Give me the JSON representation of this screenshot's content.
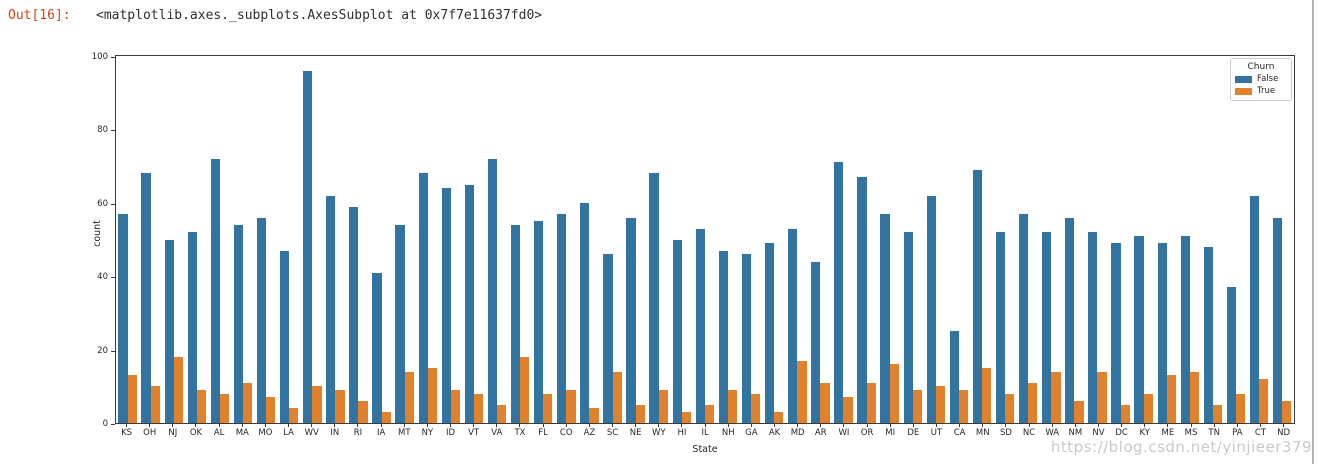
{
  "notebook": {
    "out_prompt": "Out[16]:",
    "out_value": "<matplotlib.axes._subplots.AxesSubplot at 0x7f7e11637fd0>",
    "prompt_color": "#d84315"
  },
  "watermark": {
    "text": "https://blog.csdn.net/yinjieer379",
    "color": "#c9c9c9"
  },
  "chart_data": {
    "type": "bar",
    "title": "",
    "xlabel": "State",
    "ylabel": "count",
    "ylim": [
      0,
      100
    ],
    "yticks": [
      0,
      20,
      40,
      60,
      80,
      100
    ],
    "grid": false,
    "legend": {
      "title": "Churn",
      "position": "upper right",
      "entries": [
        {
          "label": "False",
          "color": "#3274a1"
        },
        {
          "label": "True",
          "color": "#e1812c"
        }
      ]
    },
    "categories": [
      "KS",
      "OH",
      "NJ",
      "OK",
      "AL",
      "MA",
      "MO",
      "LA",
      "WV",
      "IN",
      "RI",
      "IA",
      "MT",
      "NY",
      "ID",
      "VT",
      "VA",
      "TX",
      "FL",
      "CO",
      "AZ",
      "SC",
      "NE",
      "WY",
      "HI",
      "IL",
      "NH",
      "GA",
      "AK",
      "MD",
      "AR",
      "WI",
      "OR",
      "MI",
      "DE",
      "UT",
      "CA",
      "MN",
      "SD",
      "NC",
      "WA",
      "NM",
      "NV",
      "DC",
      "KY",
      "ME",
      "MS",
      "TN",
      "PA",
      "CT",
      "ND"
    ],
    "series": [
      {
        "name": "False",
        "color": "#3274a1",
        "values": [
          57,
          68,
          50,
          52,
          72,
          54,
          56,
          47,
          96,
          62,
          59,
          41,
          54,
          68,
          64,
          65,
          72,
          54,
          55,
          57,
          60,
          46,
          56,
          68,
          50,
          53,
          47,
          46,
          49,
          53,
          44,
          71,
          67,
          57,
          52,
          62,
          25,
          69,
          52,
          57,
          52,
          56,
          52,
          49,
          51,
          49,
          51,
          48,
          37,
          62,
          56
        ]
      },
      {
        "name": "True",
        "color": "#e1812c",
        "values": [
          13,
          10,
          18,
          9,
          8,
          11,
          7,
          4,
          10,
          9,
          6,
          3,
          14,
          15,
          9,
          8,
          5,
          18,
          8,
          9,
          4,
          14,
          5,
          9,
          3,
          5,
          9,
          8,
          3,
          17,
          11,
          7,
          11,
          16,
          9,
          10,
          9,
          15,
          8,
          11,
          14,
          6,
          14,
          5,
          8,
          13,
          14,
          5,
          8,
          12,
          6
        ]
      }
    ]
  }
}
